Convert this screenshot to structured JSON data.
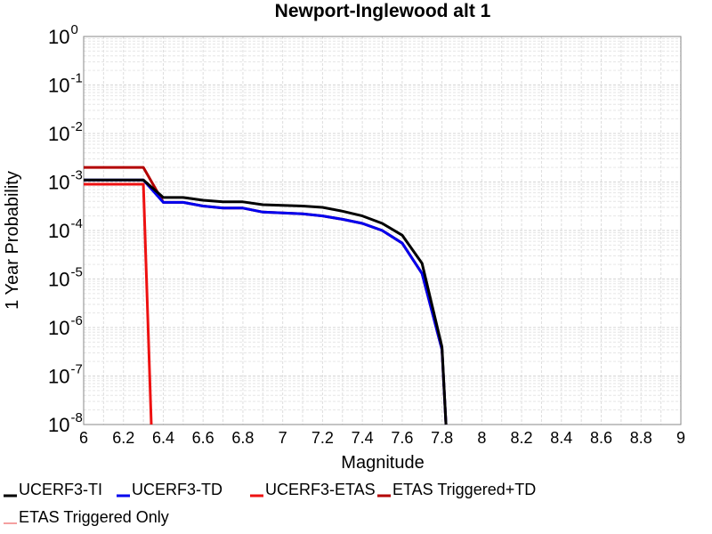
{
  "chart_data": {
    "type": "line",
    "title": "Newport-Inglewood alt 1",
    "xlabel": "Magnitude",
    "ylabel": "1 Year Probability",
    "xlim": [
      6,
      9
    ],
    "ylim": [
      1e-08,
      1
    ],
    "y_scale": "log",
    "grid": true,
    "legend_position": "bottom",
    "x_ticks": [
      "6",
      "6.2",
      "6.4",
      "6.6",
      "6.8",
      "7",
      "7.2",
      "7.4",
      "7.6",
      "7.8",
      "8",
      "8.2",
      "8.4",
      "8.6",
      "8.8",
      "9"
    ],
    "y_ticks": [
      {
        "base": "10",
        "exp": "0"
      },
      {
        "base": "10",
        "exp": "-1"
      },
      {
        "base": "10",
        "exp": "-2"
      },
      {
        "base": "10",
        "exp": "-3"
      },
      {
        "base": "10",
        "exp": "-4"
      },
      {
        "base": "10",
        "exp": "-5"
      },
      {
        "base": "10",
        "exp": "-6"
      },
      {
        "base": "10",
        "exp": "-7"
      },
      {
        "base": "10",
        "exp": "-8"
      }
    ],
    "series": [
      {
        "name": "UCERF3-TI",
        "color": "#000000",
        "x": [
          6.0,
          6.3,
          6.4,
          6.5,
          6.6,
          6.7,
          6.8,
          6.9,
          7.0,
          7.1,
          7.2,
          7.3,
          7.4,
          7.5,
          7.6,
          7.7,
          7.8,
          7.82
        ],
        "y": [
          0.0011,
          0.0011,
          0.00048,
          0.00048,
          0.00042,
          0.00039,
          0.00039,
          0.00034,
          0.00033,
          0.00032,
          0.0003,
          0.00025,
          0.0002,
          0.00014,
          8e-05,
          2.1e-05,
          4e-07,
          1e-08
        ]
      },
      {
        "name": "UCERF3-TD",
        "color": "#0000ee",
        "x": [
          6.0,
          6.3,
          6.4,
          6.5,
          6.6,
          6.7,
          6.8,
          6.9,
          7.0,
          7.1,
          7.2,
          7.3,
          7.4,
          7.5,
          7.6,
          7.7,
          7.8,
          7.82
        ],
        "y": [
          0.0011,
          0.0011,
          0.00038,
          0.00038,
          0.00032,
          0.00029,
          0.00029,
          0.00024,
          0.00023,
          0.00022,
          0.0002,
          0.00017,
          0.00014,
          0.0001,
          5.5e-05,
          1.3e-05,
          3.5e-07,
          1e-08
        ]
      },
      {
        "name": "UCERF3-ETAS",
        "color": "#ee1111",
        "x": [
          6.0,
          6.3,
          6.34
        ],
        "y": [
          0.0009,
          0.0009,
          1e-08
        ]
      },
      {
        "name": "ETAS Triggered+TD",
        "color": "#b30000",
        "x": [
          6.0,
          6.3,
          6.4,
          6.5,
          6.6,
          6.7,
          6.8,
          6.9,
          7.0,
          7.1,
          7.2,
          7.3,
          7.4,
          7.5,
          7.6,
          7.7,
          7.8,
          7.82
        ],
        "y": [
          0.002,
          0.002,
          0.00038,
          0.00038,
          0.00032,
          0.00029,
          0.00029,
          0.00024,
          0.00023,
          0.00022,
          0.0002,
          0.00017,
          0.00014,
          0.0001,
          5.5e-05,
          1.3e-05,
          3.5e-07,
          1e-08
        ]
      },
      {
        "name": "ETAS Triggered Only",
        "color": "#f08080",
        "x": [],
        "y": []
      }
    ]
  }
}
